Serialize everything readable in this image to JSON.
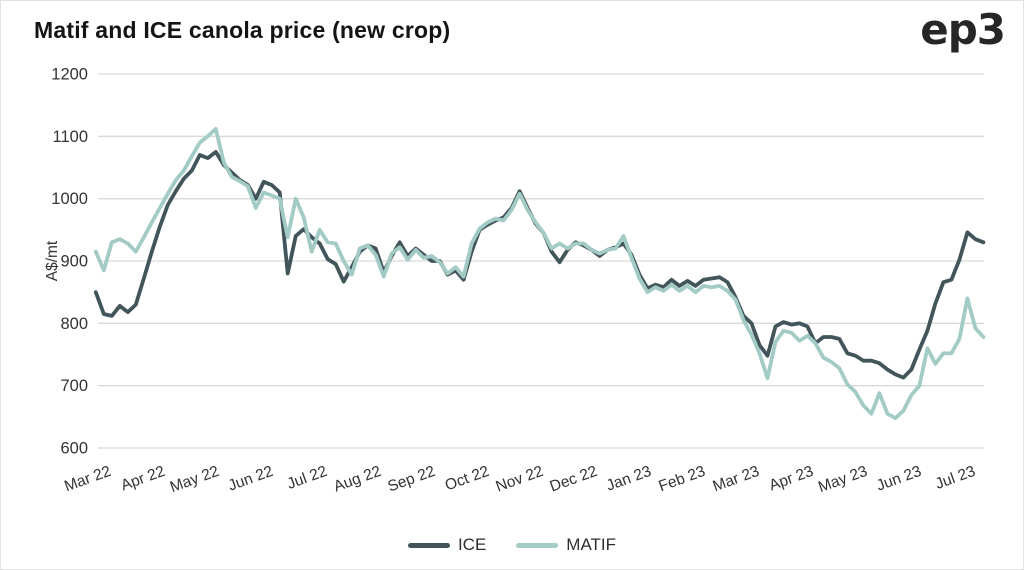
{
  "title": "Matif and ICE canola price (new crop)",
  "logo": "ep3",
  "colors": {
    "ice_line": "#42555a",
    "matif_line": "#a3cbc5",
    "gridline": "#d9d9d9",
    "axis_text": "#333333",
    "border": "#e2e2e2"
  },
  "chart_data": {
    "type": "line",
    "title": "Matif and ICE canola price (new crop)",
    "xlabel": "",
    "ylabel": "A$/mt",
    "ylim": [
      600,
      1200
    ],
    "yticks": [
      600,
      700,
      800,
      900,
      1000,
      1100,
      1200
    ],
    "xticks": [
      "Mar 22",
      "Apr 22",
      "May 22",
      "Jun 22",
      "Jul 22",
      "Aug 22",
      "Sep 22",
      "Oct 22",
      "Nov 22",
      "Dec 22",
      "Jan 23",
      "Feb 23",
      "Mar 23",
      "Apr 23",
      "May 23",
      "Jun 23",
      "Jul 23"
    ],
    "grid": "horizontal",
    "legend_position": "bottom",
    "x_unit": "months since Mar 2022 tick (series sampled uniformly, ~weekly)",
    "x_start": -0.04,
    "x_step": 0.148,
    "x_end": 16.4,
    "series": [
      {
        "name": "ICE",
        "color": "#42555a",
        "values": [
          850,
          815,
          812,
          828,
          818,
          830,
          872,
          915,
          955,
          990,
          1012,
          1032,
          1045,
          1070,
          1065,
          1075,
          1054,
          1042,
          1030,
          1022,
          1000,
          1027,
          1022,
          1010,
          880,
          940,
          951,
          938,
          928,
          903,
          895,
          867,
          890,
          915,
          925,
          920,
          882,
          908,
          930,
          908,
          920,
          910,
          900,
          900,
          878,
          885,
          870,
          915,
          950,
          958,
          965,
          970,
          985,
          1012,
          985,
          960,
          945,
          915,
          898,
          918,
          930,
          925,
          918,
          908,
          918,
          922,
          928,
          910,
          878,
          856,
          862,
          858,
          870,
          860,
          868,
          860,
          870,
          872,
          874,
          866,
          842,
          812,
          800,
          765,
          748,
          795,
          802,
          798,
          800,
          795,
          768,
          778,
          778,
          775,
          752,
          748,
          740,
          740,
          736,
          726,
          718,
          713,
          726,
          758,
          788,
          832,
          866,
          870,
          902,
          946,
          935,
          930
        ]
      },
      {
        "name": "MATIF",
        "color": "#a3cbc5",
        "values": [
          915,
          885,
          930,
          935,
          928,
          915,
          938,
          962,
          985,
          1008,
          1030,
          1045,
          1068,
          1090,
          1100,
          1112,
          1058,
          1035,
          1028,
          1020,
          985,
          1010,
          1005,
          1000,
          938,
          1000,
          970,
          915,
          950,
          930,
          928,
          900,
          878,
          920,
          925,
          910,
          875,
          912,
          922,
          902,
          918,
          905,
          908,
          898,
          880,
          890,
          875,
          928,
          952,
          962,
          968,
          965,
          982,
          1008,
          982,
          962,
          945,
          920,
          928,
          920,
          928,
          928,
          918,
          912,
          918,
          920,
          940,
          905,
          872,
          850,
          858,
          852,
          862,
          852,
          860,
          850,
          860,
          858,
          860,
          852,
          838,
          805,
          782,
          752,
          712,
          770,
          788,
          785,
          772,
          780,
          768,
          745,
          738,
          728,
          702,
          690,
          668,
          655,
          688,
          655,
          648,
          660,
          685,
          700,
          760,
          735,
          752,
          752,
          775,
          840,
          792,
          778
        ]
      }
    ]
  }
}
